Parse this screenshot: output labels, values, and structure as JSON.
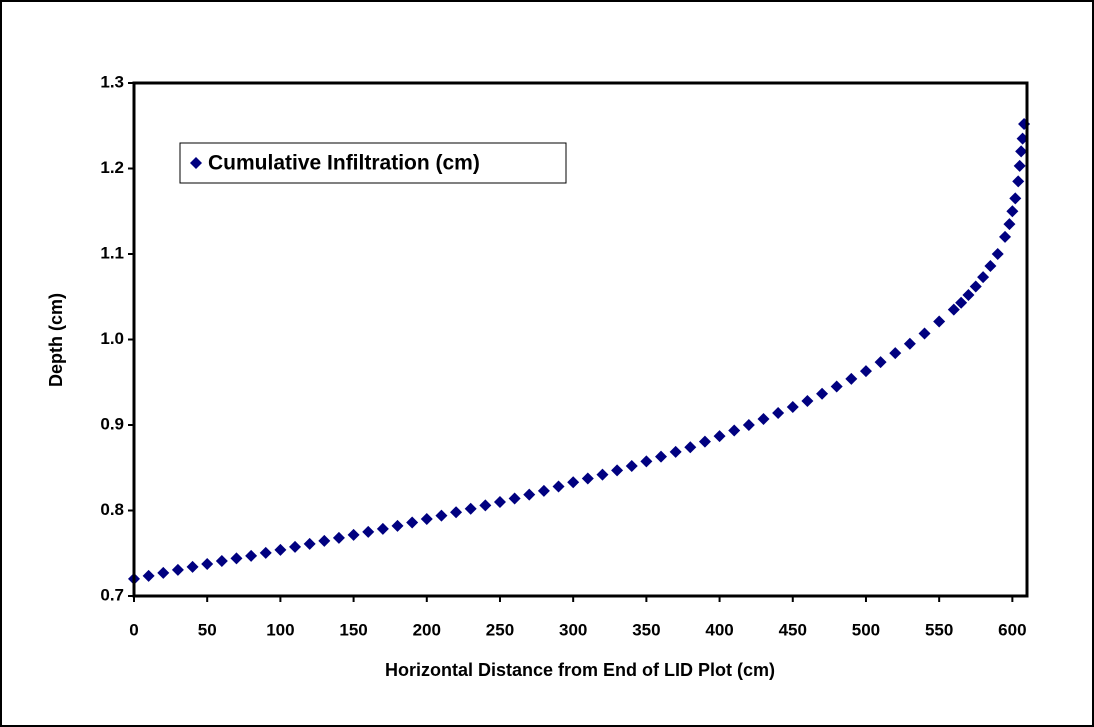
{
  "chart_data": {
    "type": "scatter",
    "x_label": "Horizontal Distance from End of LID Plot (cm)",
    "y_label": "Depth (cm)",
    "xlim": [
      0,
      610
    ],
    "ylim": [
      0.7,
      1.3
    ],
    "xticks": [
      0,
      50,
      100,
      150,
      200,
      250,
      300,
      350,
      400,
      450,
      500,
      550,
      600
    ],
    "yticks": [
      0.7,
      0.8,
      0.9,
      {
        "value": 1,
        "label": "1.0"
      },
      1.1,
      1.2,
      1.3
    ],
    "legend": "upper-left",
    "x": [
      0,
      10,
      20,
      30,
      40,
      50,
      60,
      70,
      80,
      90,
      100,
      110,
      120,
      130,
      140,
      150,
      160,
      170,
      180,
      190,
      200,
      210,
      220,
      230,
      240,
      250,
      260,
      270,
      280,
      290,
      300,
      310,
      320,
      330,
      340,
      350,
      360,
      370,
      380,
      390,
      400,
      410,
      420,
      430,
      440,
      450,
      460,
      470,
      480,
      490,
      500,
      510,
      520,
      530,
      540,
      550,
      560,
      565,
      570,
      575,
      580,
      585,
      590,
      595,
      598,
      600,
      602,
      604,
      605,
      606,
      607,
      608
    ],
    "series": [
      {
        "name": "Cumulative Infiltration (cm)",
        "color": "#000080",
        "values": [
          0.72,
          0.7235,
          0.727,
          0.7305,
          0.734,
          0.7375,
          0.741,
          0.744,
          0.747,
          0.7505,
          0.754,
          0.7575,
          0.761,
          0.7645,
          0.768,
          0.7715,
          0.775,
          0.7785,
          0.782,
          0.786,
          0.79,
          0.794,
          0.798,
          0.802,
          0.806,
          0.81,
          0.814,
          0.8185,
          0.823,
          0.828,
          0.833,
          0.8375,
          0.842,
          0.847,
          0.852,
          0.8575,
          0.863,
          0.8685,
          0.874,
          0.8805,
          0.887,
          0.8935,
          0.9,
          0.907,
          0.914,
          0.921,
          0.928,
          0.9365,
          0.945,
          0.954,
          0.963,
          0.9735,
          0.984,
          0.995,
          1.007,
          1.021,
          1.035,
          1.043,
          1.052,
          1.062,
          1.073,
          1.086,
          1.1,
          1.12,
          1.135,
          1.15,
          1.165,
          1.185,
          1.203,
          1.22,
          1.235,
          1.252
        ]
      }
    ]
  }
}
